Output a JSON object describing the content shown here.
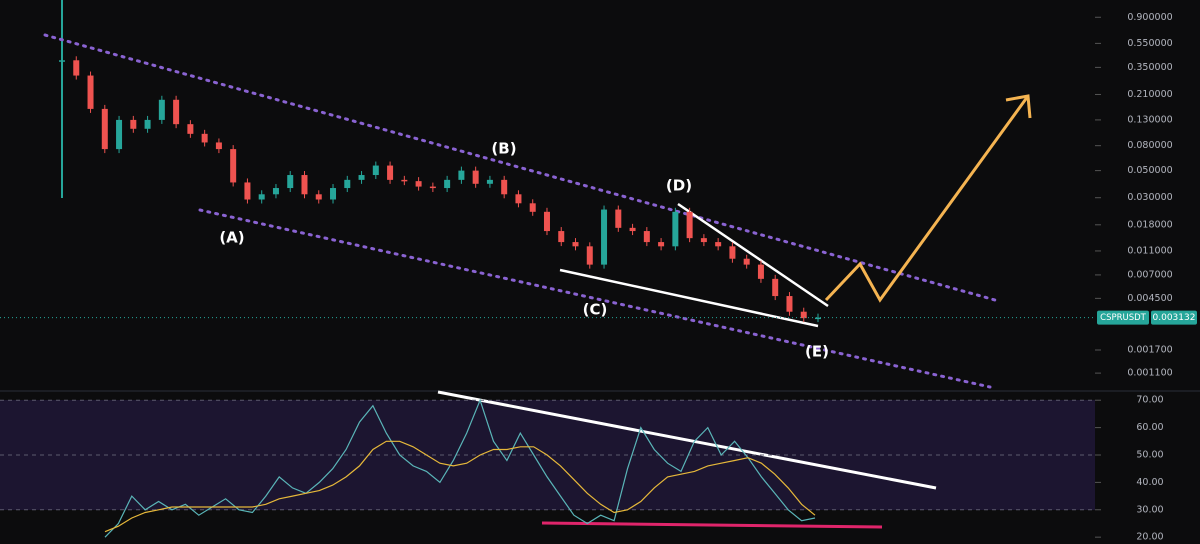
{
  "chart_data": [
    {
      "type": "candlestick",
      "symbol": "CSPRUSDT",
      "log_scale": true,
      "up_color": "#26a69a",
      "down_color": "#ef5350",
      "values": [
        0.4,
        0.3,
        0.16,
        0.075,
        0.13,
        0.11,
        0.13,
        0.19,
        0.12,
        0.1,
        0.085,
        0.075,
        0.04,
        0.029,
        0.032,
        0.036,
        0.046,
        0.032,
        0.029,
        0.036,
        0.042,
        0.046,
        0.055,
        0.042,
        0.041,
        0.037,
        0.036,
        0.042,
        0.05,
        0.039,
        0.042,
        0.032,
        0.027,
        0.023,
        0.016,
        0.013,
        0.012,
        0.0085,
        0.024,
        0.017,
        0.016,
        0.013,
        0.012,
        0.023,
        0.014,
        0.013,
        0.012,
        0.0095,
        0.0085,
        0.0065,
        0.0047,
        0.0035,
        0.0031,
        0.003132
      ],
      "ylim": [
        0.0008,
        1.2
      ],
      "yticks": [
        {
          "value": 0.9,
          "label": "0.900000"
        },
        {
          "value": 0.55,
          "label": "0.550000"
        },
        {
          "value": 0.35,
          "label": "0.350000"
        },
        {
          "value": 0.21,
          "label": "0.210000"
        },
        {
          "value": 0.13,
          "label": "0.130000"
        },
        {
          "value": 0.08,
          "label": "0.080000"
        },
        {
          "value": 0.05,
          "label": "0.050000"
        },
        {
          "value": 0.03,
          "label": "0.030000"
        },
        {
          "value": 0.018,
          "label": "0.018000"
        },
        {
          "value": 0.011,
          "label": "0.011000"
        },
        {
          "value": 0.007,
          "label": "0.007000"
        },
        {
          "value": 0.0045,
          "label": "0.004500"
        },
        {
          "value": 0.0017,
          "label": "0.001700"
        },
        {
          "value": 0.0011,
          "label": "0.001100"
        }
      ],
      "annotations": [
        "(A)",
        "(B)",
        "(C)",
        "(D)",
        "(E)"
      ]
    },
    {
      "type": "line",
      "series": [
        {
          "color": "#5ab5b8",
          "values": [
            20,
            25,
            35,
            30,
            33,
            30,
            32,
            28,
            31,
            34,
            30,
            29,
            35,
            42,
            38,
            36,
            40,
            45,
            52,
            62,
            68,
            58,
            50,
            46,
            44,
            40,
            48,
            58,
            70,
            55,
            48,
            58,
            50,
            42,
            35,
            28,
            25,
            28,
            26,
            45,
            60,
            52,
            47,
            44,
            55,
            60,
            50,
            55,
            49,
            42,
            36,
            30,
            26,
            27
          ]
        },
        {
          "color": "#e6b83a",
          "values": [
            22,
            24,
            27,
            29,
            30,
            31,
            31,
            31,
            31,
            31,
            31,
            31,
            32,
            34,
            35,
            36,
            37,
            39,
            42,
            46,
            52,
            55,
            55,
            53,
            50,
            47,
            46,
            47,
            50,
            52,
            52,
            53,
            53,
            50,
            46,
            41,
            36,
            32,
            29,
            30,
            33,
            38,
            42,
            43,
            44,
            46,
            47,
            48,
            49,
            47,
            43,
            38,
            32,
            28
          ]
        }
      ],
      "ylim": [
        17.5,
        73
      ],
      "yticks": [
        {
          "value": 70,
          "label": "70.00"
        },
        {
          "value": 60,
          "label": "60.00"
        },
        {
          "value": 50,
          "label": "50.00"
        },
        {
          "value": 40,
          "label": "40.00"
        },
        {
          "value": 30,
          "label": "30.00"
        },
        {
          "value": 20,
          "label": "20.00"
        }
      ]
    }
  ]
}
